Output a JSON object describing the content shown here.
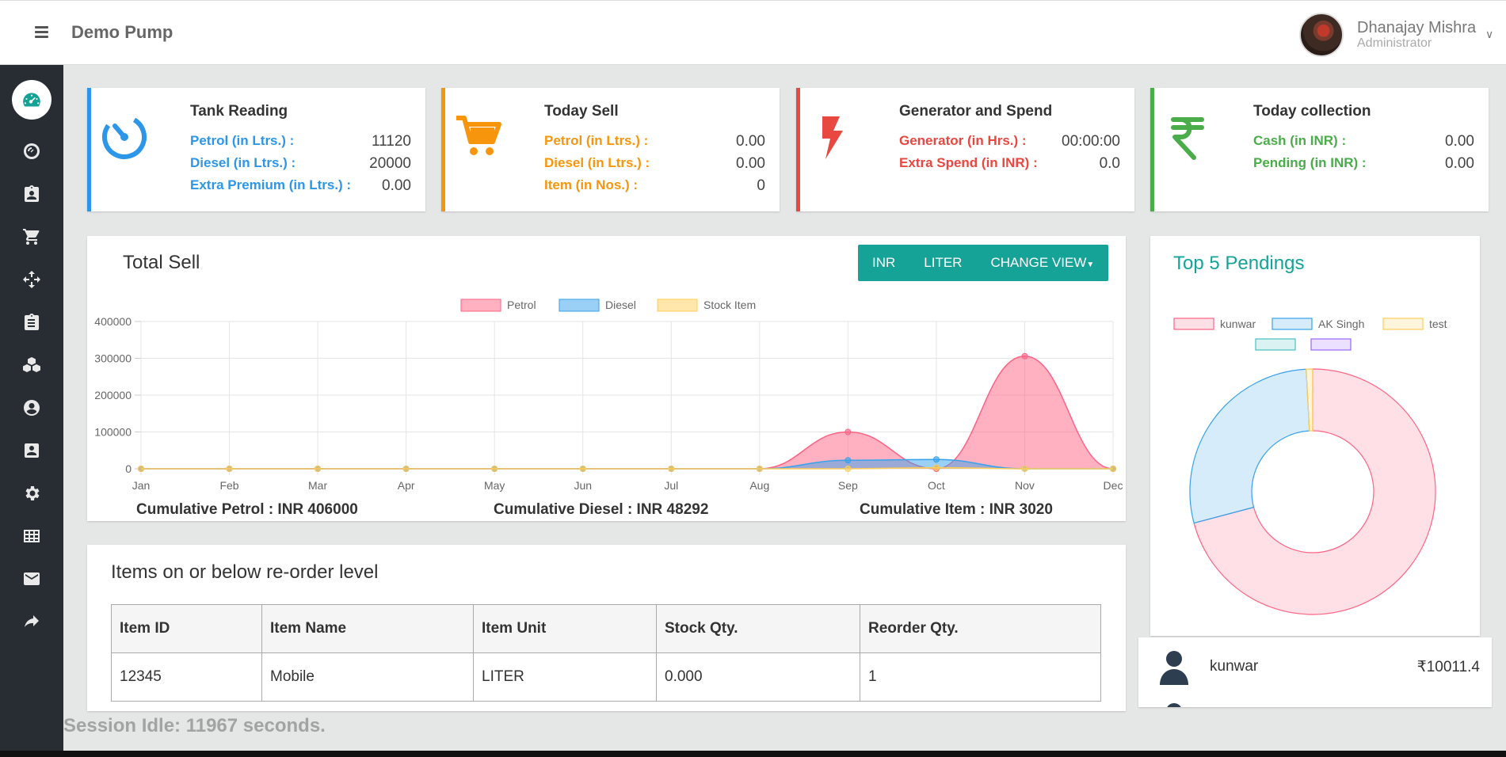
{
  "header": {
    "brand": "Demo Pump",
    "user_name": "Dhanajay Mishra",
    "user_role": "Administrator"
  },
  "sidebar": {
    "items": [
      {
        "icon": "dashboard-icon",
        "active": true
      },
      {
        "icon": "tank-gauge-icon"
      },
      {
        "icon": "clipboard-user-icon"
      },
      {
        "icon": "cart-icon"
      },
      {
        "icon": "move-arrows-icon"
      },
      {
        "icon": "clipboard-list-icon"
      },
      {
        "icon": "boxes-icon"
      },
      {
        "icon": "user-circle-icon"
      },
      {
        "icon": "contact-card-icon"
      },
      {
        "icon": "settings-gear-icon"
      },
      {
        "icon": "table-grid-icon"
      },
      {
        "icon": "mail-icon"
      },
      {
        "icon": "share-arrow-icon"
      }
    ]
  },
  "stats": {
    "tank": {
      "title": "Tank Reading",
      "rows": [
        {
          "label": "Petrol (in Ltrs.) :",
          "value": "11120"
        },
        {
          "label": "Diesel (in Ltrs.) :",
          "value": "20000"
        },
        {
          "label": "Extra Premium (in Ltrs.) :",
          "value": "0.00"
        }
      ]
    },
    "today_sell": {
      "title": "Today Sell",
      "rows": [
        {
          "label": "Petrol (in Ltrs.) :",
          "value": "0.00"
        },
        {
          "label": "Diesel (in Ltrs.) :",
          "value": "0.00"
        },
        {
          "label": "Item (in Nos.) :",
          "value": "0"
        }
      ]
    },
    "generator": {
      "title": "Generator and Spend",
      "rows": [
        {
          "label": "Generator (in Hrs.) :",
          "value": "00:00:00"
        },
        {
          "label": "Extra Spend (in INR) :",
          "value": "0.0"
        }
      ]
    },
    "collection": {
      "title": "Today collection",
      "rows": [
        {
          "label": "Cash (in INR) :",
          "value": "0.00"
        },
        {
          "label": "Pending (in INR) :",
          "value": "0.00"
        }
      ]
    }
  },
  "total_sell": {
    "title": "Total Sell",
    "buttons": {
      "inr": "INR",
      "liter": "LITER",
      "change_view": "CHANGE VIEW"
    },
    "cumulative_petrol": "Cumulative Petrol : INR 406000",
    "cumulative_diesel": "Cumulative Diesel : INR 48292",
    "cumulative_item": "Cumulative Item : INR 3020"
  },
  "reorder": {
    "title": "Items on or below re-order level",
    "columns": [
      "Item ID",
      "Item Name",
      "Item Unit",
      "Stock Qty.",
      "Reorder Qty."
    ],
    "rows": [
      [
        "12345",
        "Mobile",
        "LITER",
        "0.000",
        "1"
      ]
    ]
  },
  "pendings": {
    "title": "Top 5 Pendings",
    "list": [
      {
        "name": "kunwar",
        "amount": "₹10011.4"
      }
    ]
  },
  "session": "Session Idle: 11967 seconds.",
  "chart_data": [
    {
      "type": "area",
      "title": "",
      "categories": [
        "Jan",
        "Feb",
        "Mar",
        "Apr",
        "May",
        "Jun",
        "Jul",
        "Aug",
        "Sep",
        "Oct",
        "Nov",
        "Dec"
      ],
      "ylim": [
        0,
        400000
      ],
      "yticks": [
        0,
        100000,
        200000,
        300000,
        400000
      ],
      "grid": true,
      "legend_position": "top",
      "series": [
        {
          "name": "Petrol",
          "color": "#ff6384",
          "values": [
            0,
            0,
            0,
            0,
            0,
            0,
            0,
            0,
            100000,
            0,
            306000,
            0
          ]
        },
        {
          "name": "Diesel",
          "color": "#36a2eb",
          "values": [
            0,
            0,
            0,
            0,
            0,
            0,
            0,
            0,
            23000,
            25292,
            0,
            0
          ]
        },
        {
          "name": "Stock Item",
          "color": "#ffcd56",
          "values": [
            0,
            0,
            0,
            0,
            0,
            0,
            0,
            0,
            0,
            3020,
            0,
            0
          ]
        }
      ]
    },
    {
      "type": "pie",
      "subtype": "doughnut",
      "legend_position": "top",
      "labels": [
        "kunwar",
        "AK Singh",
        "test",
        "",
        ""
      ],
      "colors": [
        "#ff6384",
        "#36a2eb",
        "#ffcd56",
        "#4bc0c0",
        "#9966ff"
      ],
      "values": [
        10011.4,
        3990,
        120,
        0,
        0
      ]
    }
  ]
}
